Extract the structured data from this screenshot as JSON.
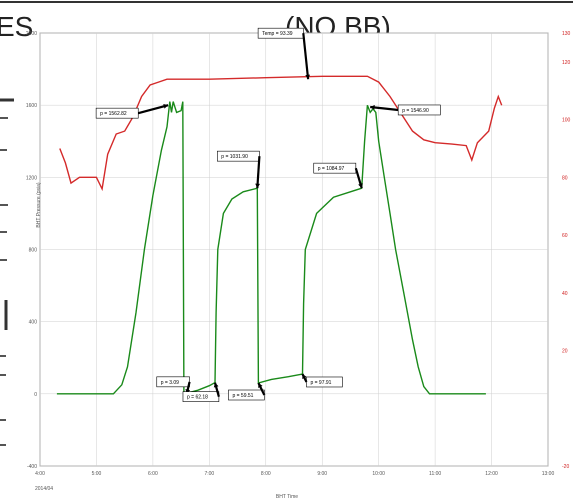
{
  "header": {
    "title_left": "ES",
    "title_right": "(NO BB)",
    "title_mid": "..."
  },
  "chart_data": {
    "type": "line",
    "xlabel": "BHT Time",
    "date_label": "2014/04",
    "ylabel_left": "BHT Pressure (psia)",
    "x_ticks": [
      "4:00",
      "5:00",
      "6:00",
      "7:00",
      "8:00",
      "9:00",
      "10:00",
      "11:00",
      "12:00",
      "13:00"
    ],
    "y_ticks_left": [
      "-400",
      "0",
      "400",
      "800",
      "1200",
      "1600",
      "2000"
    ],
    "y_ticks_right": [
      "-20",
      "20",
      "40",
      "60",
      "80",
      "100",
      "120",
      "130"
    ],
    "ylim_left": [
      -400,
      2000
    ],
    "ylim_right": [
      -20,
      130
    ],
    "xlim": [
      4.0,
      13.0
    ],
    "grid": true,
    "colors": {
      "pressure": "#1a8a1a",
      "temperature": "#d42a2a",
      "annotation": "#000000"
    },
    "series": [
      {
        "axis": "left",
        "color": "#1a8a1a",
        "points": [
          [
            4.3,
            0
          ],
          [
            5.3,
            0
          ],
          [
            5.45,
            50
          ],
          [
            5.55,
            150
          ],
          [
            5.7,
            450
          ],
          [
            5.85,
            800
          ],
          [
            6.0,
            1100
          ],
          [
            6.15,
            1350
          ],
          [
            6.25,
            1480
          ],
          [
            6.3,
            1620
          ],
          [
            6.33,
            1560
          ],
          [
            6.36,
            1620
          ],
          [
            6.38,
            1600
          ],
          [
            6.42,
            1560
          ],
          [
            6.5,
            1570
          ],
          [
            6.53,
            1620
          ],
          [
            6.55,
            0
          ],
          [
            6.6,
            0
          ],
          [
            6.62,
            5
          ],
          [
            6.8,
            20
          ],
          [
            7.0,
            45
          ],
          [
            7.1,
            62
          ],
          [
            7.12,
            450
          ],
          [
            7.15,
            800
          ],
          [
            7.25,
            1000
          ],
          [
            7.4,
            1080
          ],
          [
            7.6,
            1120
          ],
          [
            7.85,
            1140
          ],
          [
            7.87,
            60
          ],
          [
            8.1,
            80
          ],
          [
            8.4,
            95
          ],
          [
            8.65,
            110
          ],
          [
            8.67,
            500
          ],
          [
            8.7,
            800
          ],
          [
            8.9,
            1000
          ],
          [
            9.2,
            1090
          ],
          [
            9.5,
            1120
          ],
          [
            9.7,
            1140
          ],
          [
            9.75,
            1400
          ],
          [
            9.8,
            1600
          ],
          [
            9.85,
            1560
          ],
          [
            9.9,
            1580
          ],
          [
            9.95,
            1560
          ],
          [
            10.0,
            1400
          ],
          [
            10.1,
            1200
          ],
          [
            10.2,
            1000
          ],
          [
            10.3,
            800
          ],
          [
            10.45,
            550
          ],
          [
            10.6,
            300
          ],
          [
            10.7,
            150
          ],
          [
            10.8,
            40
          ],
          [
            10.9,
            0
          ],
          [
            11.9,
            0
          ]
        ]
      },
      {
        "axis": "right",
        "color": "#d42a2a",
        "points": [
          [
            4.35,
            90
          ],
          [
            4.45,
            85
          ],
          [
            4.55,
            78
          ],
          [
            4.7,
            80
          ],
          [
            5.0,
            80
          ],
          [
            5.1,
            76
          ],
          [
            5.2,
            88
          ],
          [
            5.35,
            95
          ],
          [
            5.5,
            96
          ],
          [
            5.65,
            101
          ],
          [
            5.8,
            108
          ],
          [
            5.95,
            112
          ],
          [
            6.1,
            113
          ],
          [
            6.25,
            114
          ],
          [
            6.4,
            114
          ],
          [
            7.0,
            114
          ],
          [
            8.0,
            114.5
          ],
          [
            9.0,
            115
          ],
          [
            9.6,
            115
          ],
          [
            9.8,
            115
          ],
          [
            10.0,
            113
          ],
          [
            10.2,
            108
          ],
          [
            10.4,
            102
          ],
          [
            10.6,
            96
          ],
          [
            10.8,
            93
          ],
          [
            11.0,
            92
          ],
          [
            11.3,
            91.5
          ],
          [
            11.55,
            91
          ],
          [
            11.65,
            86
          ],
          [
            11.75,
            92
          ],
          [
            11.95,
            96
          ],
          [
            12.05,
            104
          ],
          [
            12.12,
            108
          ],
          [
            12.18,
            105
          ]
        ]
      }
    ],
    "annotations": [
      {
        "label": "p = 1562.82",
        "x": 6.27,
        "y": 1600,
        "axis": "left"
      },
      {
        "label": "Temp = 93.39",
        "x": 8.75,
        "y": 114,
        "axis": "right"
      },
      {
        "label": "p = 1546.90",
        "x": 9.85,
        "y": 1590,
        "axis": "left"
      },
      {
        "label": "p = 1031.90",
        "x": 7.85,
        "y": 1140,
        "axis": "left"
      },
      {
        "label": "p = 1084.97",
        "x": 9.7,
        "y": 1140,
        "axis": "left"
      },
      {
        "label": "p = 3.09",
        "x": 6.6,
        "y": 0,
        "axis": "left"
      },
      {
        "label": "p = 62.18",
        "x": 7.1,
        "y": 62,
        "axis": "left"
      },
      {
        "label": "p = 59.51",
        "x": 7.87,
        "y": 60,
        "axis": "left"
      },
      {
        "label": "p = 97.91",
        "x": 8.65,
        "y": 110,
        "axis": "left"
      }
    ]
  }
}
